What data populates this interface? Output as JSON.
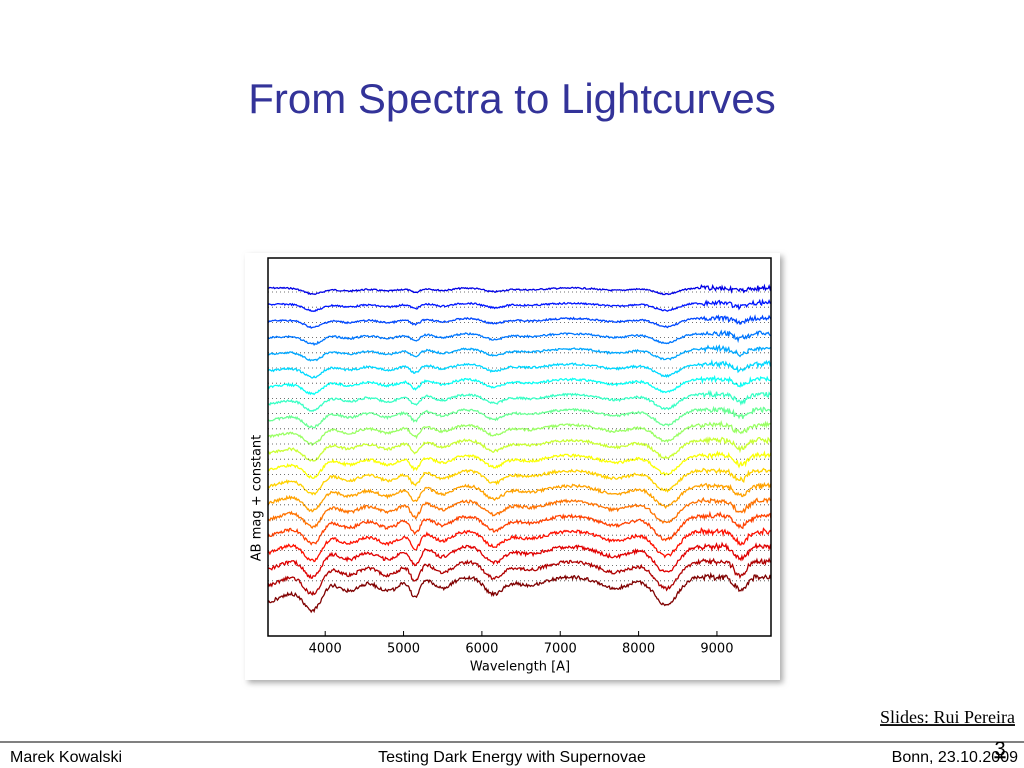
{
  "slide": {
    "title": "From Spectra to Lightcurves",
    "credit": "Slides:  Rui Pereira",
    "page_number": "3"
  },
  "footer": {
    "left": "Marek Kowalski",
    "center": "Testing Dark Energy with Supernovae",
    "right": "Bonn, 23.10.2009"
  },
  "chart_data": {
    "type": "line",
    "xlabel": "Wavelength [A]",
    "ylabel": "AB mag + constant",
    "xlim": [
      3270,
      9690
    ],
    "xticks": [
      4000,
      5000,
      6000,
      7000,
      8000,
      9000
    ]
  }
}
